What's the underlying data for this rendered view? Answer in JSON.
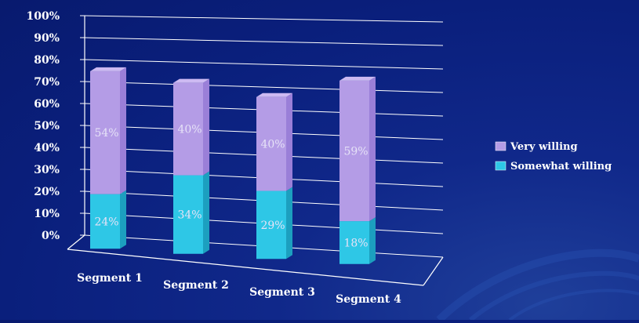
{
  "chart_data": {
    "type": "bar",
    "stacked": true,
    "percent_stacked": true,
    "three_d": true,
    "categories": [
      "Segment 1",
      "Segment 2",
      "Segment 3",
      "Segment 4"
    ],
    "series": [
      {
        "name": "Somewhat willing",
        "values": [
          24,
          34,
          29,
          18
        ],
        "labels": [
          "24%",
          "34%",
          "29%",
          "18%"
        ],
        "color": "#2ec7e6"
      },
      {
        "name": "Very willing",
        "values": [
          54,
          40,
          40,
          59
        ],
        "labels": [
          "54%",
          "40%",
          "40%",
          "59%"
        ],
        "color": "#b49ce6"
      }
    ],
    "y_ticks": [
      "0%",
      "10%",
      "20%",
      "30%",
      "40%",
      "50%",
      "60%",
      "70%",
      "80%",
      "90%",
      "100%"
    ],
    "ylim": [
      0,
      100
    ],
    "grid": true,
    "legend_position": "right",
    "title": "",
    "xlabel": "",
    "ylabel": ""
  },
  "colors": {
    "background": "#0a1f7c",
    "gridline": "#ffffff",
    "very_willing_front": "#b49ce6",
    "very_willing_side": "#9a7fd8",
    "very_willing_top": "#cdbaf2",
    "somewhat_willing_front": "#2ec7e6",
    "somewhat_willing_side": "#1c9fbf",
    "somewhat_willing_top": "#7fe2f5"
  }
}
